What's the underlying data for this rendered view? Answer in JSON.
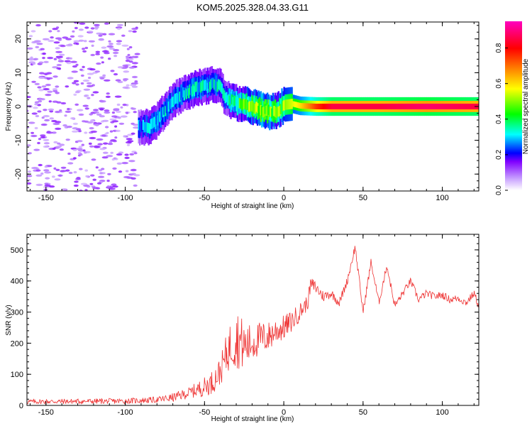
{
  "title": "KOM5.2025.328.04.33.G11",
  "chart_data": [
    {
      "type": "heatmap",
      "name": "spectrogram",
      "xlabel": "Height of straight line (km)",
      "ylabel": "Frequency (Hz)",
      "xlim": [
        -162,
        123
      ],
      "ylim": [
        -25,
        25
      ],
      "xticks": [
        -150,
        -100,
        -50,
        0,
        50,
        100
      ],
      "xtick_labels": [
        "-150",
        "-100",
        "-50",
        "0",
        "50",
        "100"
      ],
      "yticks": [
        -20,
        -10,
        0,
        10,
        20
      ],
      "ytick_labels": [
        "-20",
        "-10",
        "0",
        "10",
        "20"
      ],
      "colorbar": {
        "label": "Normalized spectral amplitude",
        "range": [
          0,
          0.95
        ],
        "ticks": [
          0.0,
          0.2,
          0.4,
          0.6,
          0.8
        ],
        "tick_labels": [
          "0.0",
          "0.2",
          "0.4",
          "0.6",
          "0.8"
        ],
        "colors": [
          "#ffffff",
          "#c8a0ff",
          "#8000ff",
          "#0000ff",
          "#00ffff",
          "#00ff00",
          "#ffff00",
          "#ff8000",
          "#ff0000",
          "#ff00c0"
        ]
      },
      "ridge": {
        "x": [
          -92,
          -85,
          -80,
          -75,
          -70,
          -65,
          -60,
          -55,
          -50,
          -45,
          -40,
          -38,
          -35,
          -30,
          -25,
          -20,
          -15,
          -10,
          -5,
          0,
          5,
          10,
          20,
          30,
          60,
          90,
          123
        ],
        "freq": [
          -6,
          -6,
          -4,
          -1,
          2,
          3.5,
          4.5,
          5.5,
          6,
          6.5,
          6,
          3,
          2,
          1,
          0.5,
          0,
          -1,
          -1.5,
          -1.5,
          0.5,
          0.8,
          0.2,
          0,
          0,
          0,
          0,
          0
        ],
        "amp": [
          0.25,
          0.3,
          0.3,
          0.3,
          0.3,
          0.3,
          0.32,
          0.32,
          0.32,
          0.33,
          0.3,
          0.3,
          0.33,
          0.4,
          0.45,
          0.5,
          0.55,
          0.55,
          0.5,
          0.5,
          0.55,
          0.6,
          0.75,
          0.85,
          0.85,
          0.88,
          0.85
        ]
      }
    },
    {
      "type": "line",
      "name": "snr",
      "xlabel": "Height of straight line (km)",
      "ylabel": "SNR (v/v)",
      "xlim": [
        -162,
        123
      ],
      "ylim": [
        0,
        550
      ],
      "xticks": [
        -150,
        -100,
        -50,
        0,
        50,
        100
      ],
      "xtick_labels": [
        "-150",
        "-100",
        "-50",
        "0",
        "50",
        "100"
      ],
      "yticks": [
        0,
        100,
        200,
        300,
        400,
        500
      ],
      "ytick_labels": [
        "0",
        "100",
        "200",
        "300",
        "400",
        "500"
      ],
      "color": "#ee3333",
      "envelope": {
        "x": [
          -162,
          -100,
          -80,
          -70,
          -60,
          -50,
          -45,
          -40,
          -35,
          -30,
          -25,
          -20,
          -15,
          -10,
          -5,
          0,
          5,
          10,
          15,
          17,
          20,
          25,
          30,
          35,
          40,
          45,
          50,
          55,
          60,
          65,
          70,
          75,
          80,
          85,
          90,
          95,
          100,
          105,
          110,
          115,
          120,
          123
        ],
        "snr": [
          12,
          14,
          18,
          25,
          40,
          60,
          75,
          110,
          180,
          220,
          190,
          200,
          215,
          220,
          240,
          250,
          270,
          300,
          330,
          390,
          380,
          350,
          360,
          330,
          400,
          510,
          300,
          460,
          330,
          450,
          320,
          360,
          400,
          340,
          360,
          350,
          355,
          340,
          345,
          330,
          360,
          320
        ]
      },
      "noise_amplitude": {
        "x": [
          -162,
          -100,
          -80,
          -60,
          -40,
          -30,
          -20,
          0,
          15,
          30,
          60,
          123
        ],
        "amp": [
          8,
          9,
          10,
          18,
          45,
          100,
          60,
          40,
          25,
          15,
          12,
          12
        ]
      }
    }
  ]
}
